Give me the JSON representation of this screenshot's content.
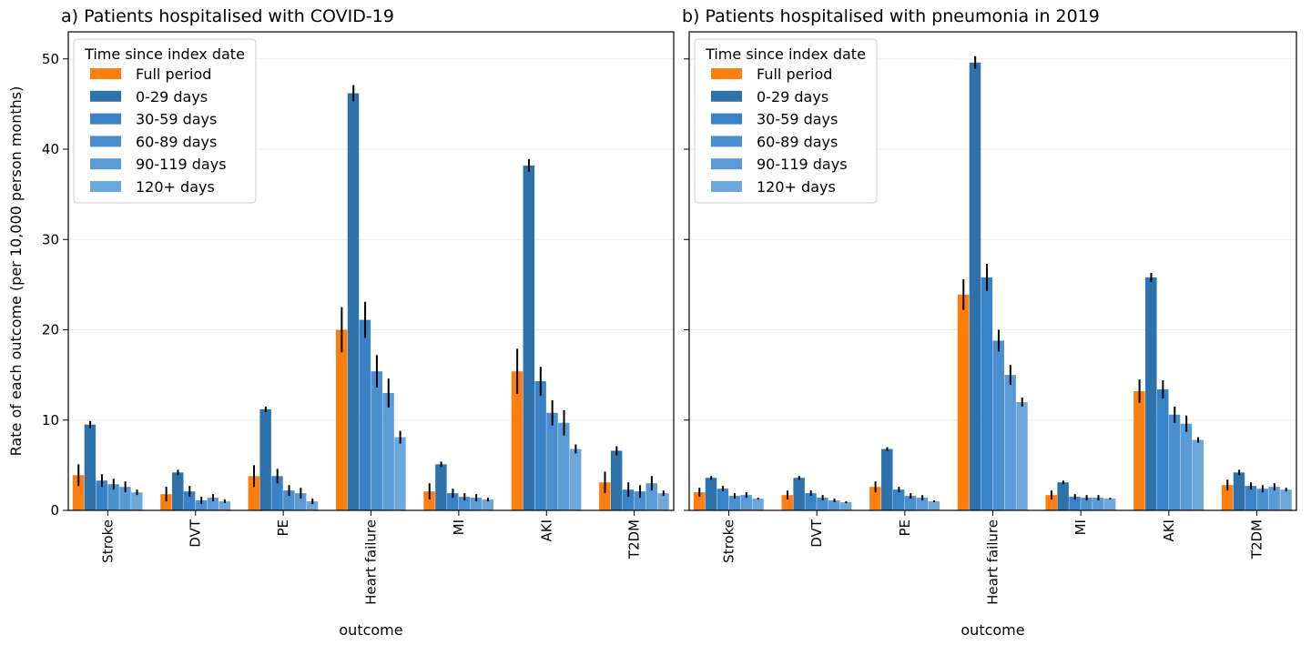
{
  "chart_data": [
    {
      "type": "bar",
      "title": "a) Patients hospitalised with COVID-19",
      "xlabel": "outcome",
      "ylabel": "Rate of each outcome (per 10,000 person months)",
      "ylim": [
        0,
        53
      ],
      "yticks": [
        0,
        10,
        20,
        30,
        40,
        50
      ],
      "grid": true,
      "legend": {
        "title": "Time since index date",
        "placement": "top-left"
      },
      "categories": [
        "Stroke",
        "DVT",
        "PE",
        "Heart failure",
        "MI",
        "AKI",
        "T2DM"
      ],
      "series": [
        {
          "name": "Full period",
          "color": "#ff7f0e",
          "values": [
            3.9,
            1.8,
            3.8,
            20.0,
            2.1,
            15.4,
            3.1
          ],
          "errors": [
            1.2,
            0.8,
            1.2,
            2.5,
            0.9,
            2.5,
            1.2
          ]
        },
        {
          "name": "0-29 days",
          "color": "#2e72ac",
          "values": [
            9.5,
            4.2,
            11.2,
            46.2,
            5.1,
            38.2,
            6.6
          ],
          "errors": [
            0.4,
            0.3,
            0.3,
            0.9,
            0.3,
            0.7,
            0.5
          ]
        },
        {
          "name": "30-59 days",
          "color": "#3a82c8",
          "values": [
            3.3,
            2.1,
            3.8,
            21.1,
            1.9,
            14.3,
            2.3
          ],
          "errors": [
            0.7,
            0.6,
            0.8,
            2.0,
            0.5,
            1.6,
            0.8
          ]
        },
        {
          "name": "60-89 days",
          "color": "#4a90d0",
          "values": [
            2.9,
            1.1,
            2.2,
            15.4,
            1.5,
            10.8,
            2.1
          ],
          "errors": [
            0.6,
            0.4,
            0.6,
            1.8,
            0.4,
            1.4,
            0.7
          ]
        },
        {
          "name": "90-119 days",
          "color": "#5a9bd5",
          "values": [
            2.6,
            1.4,
            1.9,
            13.0,
            1.4,
            9.7,
            3.0
          ],
          "errors": [
            0.6,
            0.4,
            0.6,
            1.6,
            0.4,
            1.4,
            0.8
          ]
        },
        {
          "name": "120+ days",
          "color": "#6ea8da",
          "values": [
            2.0,
            1.0,
            1.0,
            8.1,
            1.2,
            6.8,
            1.9
          ],
          "errors": [
            0.3,
            0.2,
            0.3,
            0.7,
            0.2,
            0.5,
            0.3
          ]
        }
      ]
    },
    {
      "type": "bar",
      "title": "b) Patients hospitalised with pneumonia in 2019",
      "xlabel": "outcome",
      "ylabel": "",
      "ylim": [
        0,
        53
      ],
      "yticks": [
        0,
        10,
        20,
        30,
        40,
        50
      ],
      "grid": true,
      "legend": {
        "title": "Time since index date",
        "placement": "top-left"
      },
      "categories": [
        "Stroke",
        "DVT",
        "PE",
        "Heart failure",
        "MI",
        "AKI",
        "T2DM"
      ],
      "series": [
        {
          "name": "Full period",
          "color": "#ff7f0e",
          "values": [
            2.0,
            1.7,
            2.6,
            23.9,
            1.7,
            13.2,
            2.8
          ],
          "errors": [
            0.5,
            0.5,
            0.6,
            1.7,
            0.5,
            1.3,
            0.6
          ]
        },
        {
          "name": "0-29 days",
          "color": "#2e72ac",
          "values": [
            3.6,
            3.6,
            6.8,
            49.6,
            3.1,
            25.8,
            4.2
          ],
          "errors": [
            0.2,
            0.2,
            0.2,
            0.7,
            0.2,
            0.5,
            0.3
          ]
        },
        {
          "name": "30-59 days",
          "color": "#3a82c8",
          "values": [
            2.4,
            1.9,
            2.3,
            25.8,
            1.5,
            13.4,
            2.7
          ],
          "errors": [
            0.3,
            0.3,
            0.3,
            1.5,
            0.3,
            1.0,
            0.4
          ]
        },
        {
          "name": "60-89 days",
          "color": "#4a90d0",
          "values": [
            1.6,
            1.4,
            1.6,
            18.8,
            1.4,
            10.6,
            2.4
          ],
          "errors": [
            0.3,
            0.3,
            0.3,
            1.2,
            0.3,
            0.9,
            0.4
          ]
        },
        {
          "name": "90-119 days",
          "color": "#5a9bd5",
          "values": [
            1.7,
            1.1,
            1.4,
            15.0,
            1.4,
            9.6,
            2.6
          ],
          "errors": [
            0.3,
            0.2,
            0.3,
            1.1,
            0.3,
            0.9,
            0.4
          ]
        },
        {
          "name": "120+ days",
          "color": "#6ea8da",
          "values": [
            1.3,
            0.9,
            1.0,
            12.0,
            1.3,
            7.8,
            2.3
          ],
          "errors": [
            0.1,
            0.1,
            0.1,
            0.5,
            0.1,
            0.3,
            0.2
          ]
        }
      ]
    }
  ]
}
